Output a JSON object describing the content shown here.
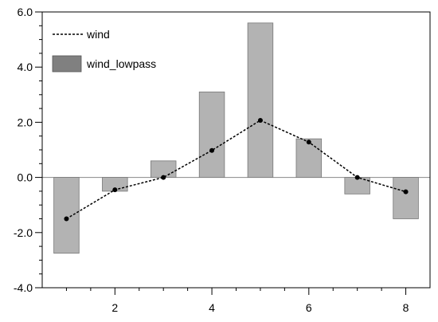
{
  "chart_data": {
    "type": "bar",
    "x": [
      1,
      2,
      3,
      4,
      5,
      6,
      7,
      8
    ],
    "xticks": [
      2,
      4,
      6,
      8
    ],
    "xlim": [
      0.5,
      8.5
    ],
    "yticks": [
      -4.0,
      -2.0,
      0.0,
      2.0,
      4.0,
      6.0
    ],
    "ylim": [
      -4.0,
      6.0
    ],
    "series": [
      {
        "name": "wind_lowpass",
        "kind": "bar",
        "color": "#b3b3b3",
        "values": [
          -2.75,
          -0.5,
          0.6,
          3.1,
          5.6,
          1.4,
          -0.6,
          -1.5
        ]
      },
      {
        "name": "wind",
        "kind": "line",
        "style": "dashed",
        "color": "#000000",
        "values": [
          -1.5,
          -0.45,
          0.0,
          0.98,
          2.07,
          1.28,
          0.0,
          -0.52
        ]
      }
    ],
    "legend": {
      "position": "top-left",
      "line_label": "wind",
      "bar_label": "wind_lowpass",
      "bar_swatch_color": "#808080"
    }
  }
}
